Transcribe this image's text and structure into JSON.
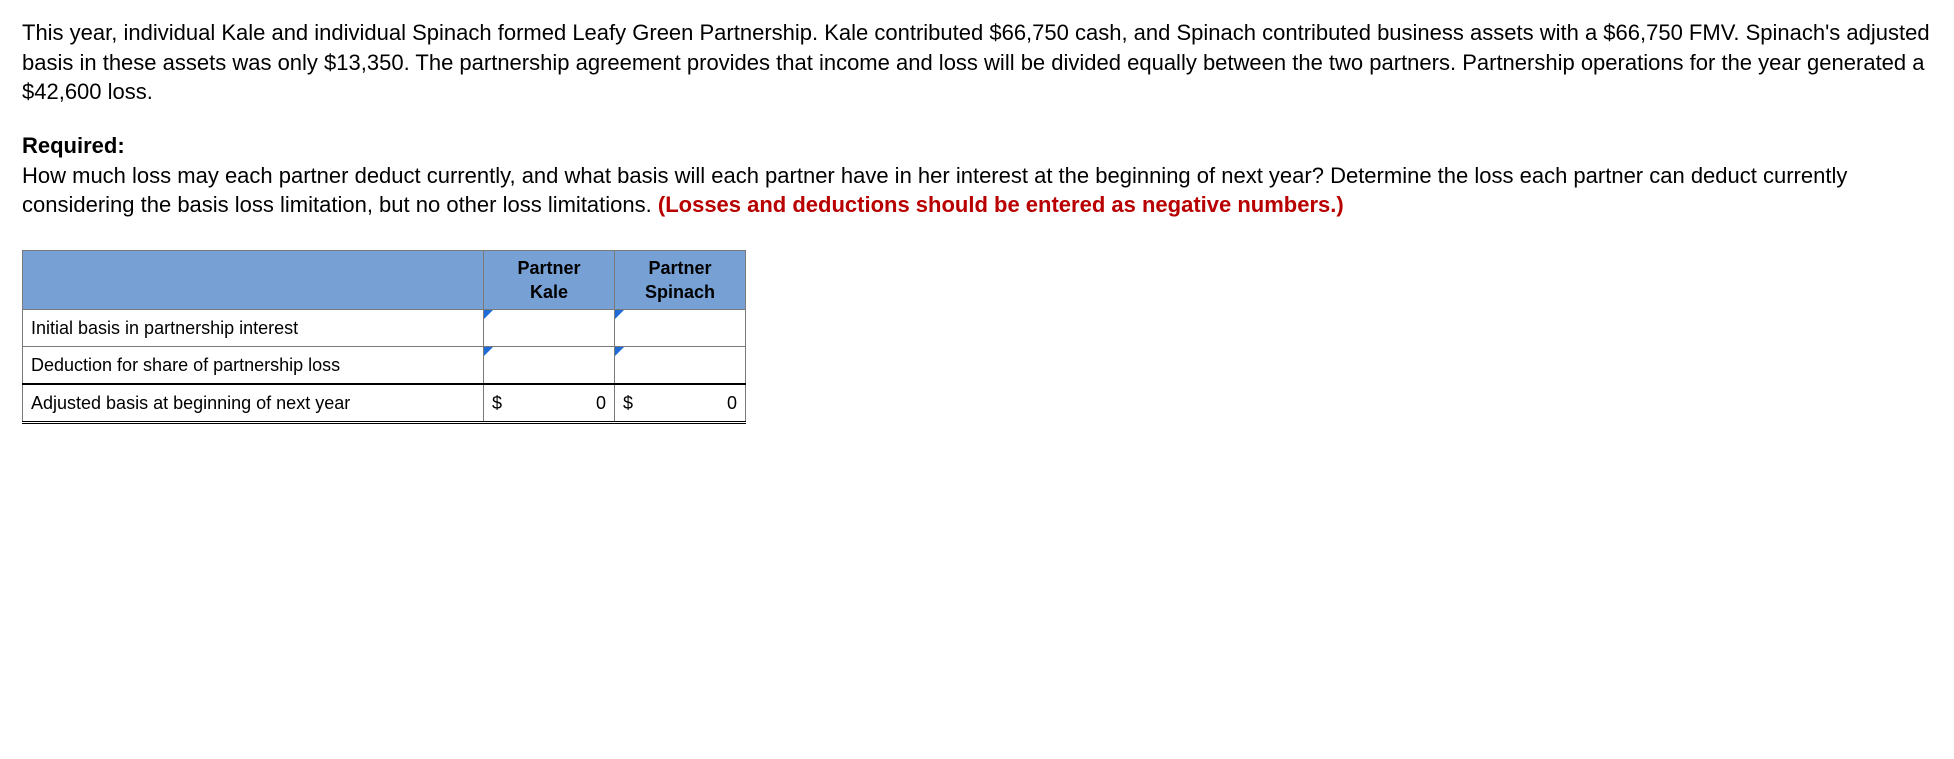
{
  "problem": {
    "body": "This year, individual Kale and individual Spinach formed Leafy Green Partnership. Kale contributed $66,750 cash, and Spinach contributed business assets with a $66,750 FMV. Spinach's adjusted basis in these assets was only $13,350. The partnership agreement provides that income and loss will be divided equally between the two partners. Partnership operations for the year generated a $42,600 loss."
  },
  "required": {
    "label": "Required:",
    "body_plain": "How much loss may each partner deduct currently, and what basis will each partner have in her interest at the beginning of next year? Determine the loss each partner can deduct currently considering the basis loss limitation, but no other loss limitations. ",
    "body_red": "(Losses and deductions should be entered as negative numbers.)"
  },
  "table": {
    "columns": [
      "Partner Kale",
      "Partner Spinach"
    ],
    "col_line2": [
      "Kale",
      "Spinach"
    ],
    "col_line1": [
      "Partner",
      "Partner"
    ],
    "rows": [
      {
        "label": "Initial basis in partnership interest",
        "kale": "",
        "spinach": "",
        "hint": true
      },
      {
        "label": "Deduction for share of partnership loss",
        "kale": "",
        "spinach": "",
        "hint": true
      },
      {
        "label": "Adjusted basis at beginning of next year",
        "kale_cur": "$",
        "kale_val": "0",
        "spinach_cur": "$",
        "spinach_val": "0",
        "total": true
      }
    ],
    "header_bg": "#77a0d4",
    "border_color": "#7a7a7a"
  }
}
